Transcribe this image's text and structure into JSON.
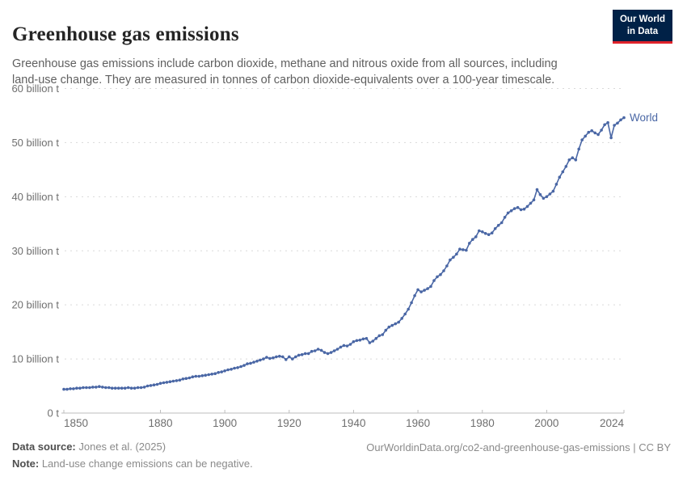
{
  "header": {
    "title": "Greenhouse gas emissions",
    "logo": {
      "line1": "Our World",
      "line2": "in Data"
    }
  },
  "subtitle": "Greenhouse gas emissions include carbon dioxide, methane and nitrous oxide from all sources, including land-use change. They are measured in tonnes of carbon dioxide-equivalents over a 100-year timescale.",
  "chart_data": {
    "type": "line",
    "title": "Greenhouse gas emissions",
    "xlabel": "",
    "ylabel": "",
    "x_start": 1850,
    "x_end": 2024,
    "ylim": [
      0,
      60
    ],
    "grid": "dashed-horizontal",
    "legend_position": "end-of-line",
    "yticks": [
      {
        "value": 0,
        "label": "0 t"
      },
      {
        "value": 10,
        "label": "10 billion t"
      },
      {
        "value": 20,
        "label": "20 billion t"
      },
      {
        "value": 30,
        "label": "30 billion t"
      },
      {
        "value": 40,
        "label": "40 billion t"
      },
      {
        "value": 50,
        "label": "50 billion t"
      },
      {
        "value": 60,
        "label": "60 billion t"
      }
    ],
    "xticks": [
      {
        "value": 1850,
        "label": "1850",
        "align": "start"
      },
      {
        "value": 1880,
        "label": "1880",
        "align": "middle"
      },
      {
        "value": 1900,
        "label": "1900",
        "align": "middle"
      },
      {
        "value": 1920,
        "label": "1920",
        "align": "middle"
      },
      {
        "value": 1940,
        "label": "1940",
        "align": "middle"
      },
      {
        "value": 1960,
        "label": "1960",
        "align": "middle"
      },
      {
        "value": 1980,
        "label": "1980",
        "align": "middle"
      },
      {
        "value": 2000,
        "label": "2000",
        "align": "middle"
      },
      {
        "value": 2024,
        "label": "2024",
        "align": "end"
      }
    ],
    "series": [
      {
        "name": "World",
        "color": "#4a67a5",
        "unit": "billion t",
        "values": [
          4.4,
          4.4,
          4.5,
          4.5,
          4.6,
          4.6,
          4.7,
          4.7,
          4.7,
          4.8,
          4.8,
          4.9,
          4.8,
          4.7,
          4.7,
          4.6,
          4.6,
          4.6,
          4.6,
          4.6,
          4.7,
          4.6,
          4.6,
          4.7,
          4.7,
          4.8,
          5.0,
          5.1,
          5.2,
          5.3,
          5.5,
          5.6,
          5.7,
          5.8,
          5.9,
          6.0,
          6.1,
          6.3,
          6.4,
          6.5,
          6.7,
          6.8,
          6.8,
          6.9,
          7.0,
          7.1,
          7.2,
          7.3,
          7.5,
          7.6,
          7.8,
          8.0,
          8.1,
          8.3,
          8.4,
          8.6,
          8.8,
          9.1,
          9.2,
          9.4,
          9.6,
          9.8,
          10.0,
          10.3,
          10.1,
          10.2,
          10.4,
          10.5,
          10.4,
          9.9,
          10.4,
          10.0,
          10.4,
          10.7,
          10.8,
          11.0,
          11.0,
          11.4,
          11.5,
          11.8,
          11.6,
          11.2,
          11.0,
          11.2,
          11.5,
          11.8,
          12.2,
          12.5,
          12.4,
          12.7,
          13.2,
          13.4,
          13.5,
          13.7,
          13.8,
          13.0,
          13.3,
          13.8,
          14.3,
          14.5,
          15.3,
          15.9,
          16.2,
          16.5,
          16.8,
          17.5,
          18.3,
          19.2,
          20.4,
          21.7,
          22.8,
          22.4,
          22.7,
          23.0,
          23.4,
          24.5,
          25.2,
          25.6,
          26.3,
          27.2,
          28.3,
          28.8,
          29.4,
          30.3,
          30.2,
          30.1,
          31.4,
          32.1,
          32.6,
          33.7,
          33.5,
          33.2,
          33.0,
          33.3,
          34.1,
          34.7,
          35.2,
          36.2,
          37.0,
          37.4,
          37.8,
          38.0,
          37.6,
          37.7,
          38.2,
          38.8,
          39.4,
          41.3,
          40.4,
          39.7,
          40.0,
          40.5,
          41.0,
          42.3,
          43.6,
          44.6,
          45.6,
          46.8,
          47.2,
          46.8,
          48.8,
          50.5,
          51.2,
          51.9,
          52.2,
          51.8,
          51.5,
          52.3,
          53.3,
          53.7,
          50.9,
          53.2,
          53.6,
          54.2,
          54.6
        ]
      }
    ]
  },
  "footer": {
    "source_label": "Data source:",
    "source_value": " Jones et al. (2025)",
    "note_label": "Note:",
    "note_value": " Land-use change emissions can be negative.",
    "link": "OurWorldinData.org/co2-and-greenhouse-gas-emissions | CC BY"
  },
  "colors": {
    "accent": "#4a67a5",
    "logo_bg": "#002147",
    "logo_bar": "#e0222a",
    "grid": "#d9d9d9",
    "axis": "#bdbdbd",
    "tick_label": "#6f6f6f"
  }
}
